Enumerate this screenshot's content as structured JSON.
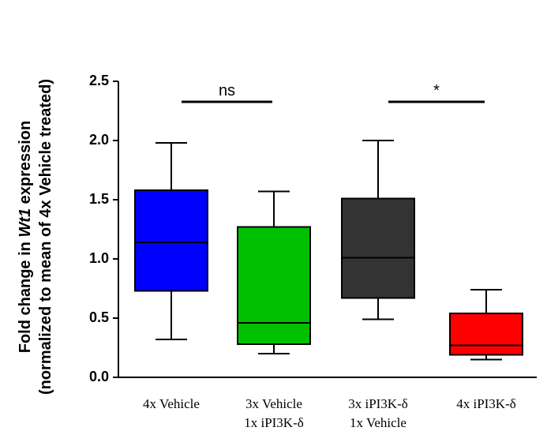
{
  "chart_data": {
    "type": "box",
    "ylabel": [
      "Fold change in ",
      "Wt1",
      " expression"
    ],
    "ylabel2": "(normalized to mean of 4x Vehicle treated)",
    "categories": [
      "4x Vehicle",
      "3x Vehicle\n1x iPI3K-δ",
      "3x iPI3K-δ\n1x Vehicle",
      "4x iPI3K-δ"
    ],
    "boxes": [
      {
        "color": "#0000ff",
        "min": 0.32,
        "q1": 0.73,
        "median": 1.14,
        "q3": 1.58,
        "max": 1.98
      },
      {
        "color": "#00c000",
        "min": 0.2,
        "q1": 0.28,
        "median": 0.46,
        "q3": 1.27,
        "max": 1.57
      },
      {
        "color": "#333333",
        "min": 0.49,
        "q1": 0.67,
        "median": 1.01,
        "q3": 1.51,
        "max": 2.0
      },
      {
        "color": "#ff0000",
        "min": 0.15,
        "q1": 0.19,
        "median": 0.27,
        "q3": 0.54,
        "max": 0.74
      }
    ],
    "annotations": [
      {
        "text": "ns",
        "from": 0,
        "to": 1
      },
      {
        "text": "*",
        "from": 2,
        "to": 3
      }
    ],
    "ylim": [
      0,
      2.5
    ],
    "yticks": [
      {
        "value": 0,
        "label": "0.0"
      },
      0.5,
      {
        "value": 1,
        "label": "1.0"
      },
      1.5,
      {
        "value": 2,
        "label": "2.0"
      },
      2.5
    ]
  }
}
